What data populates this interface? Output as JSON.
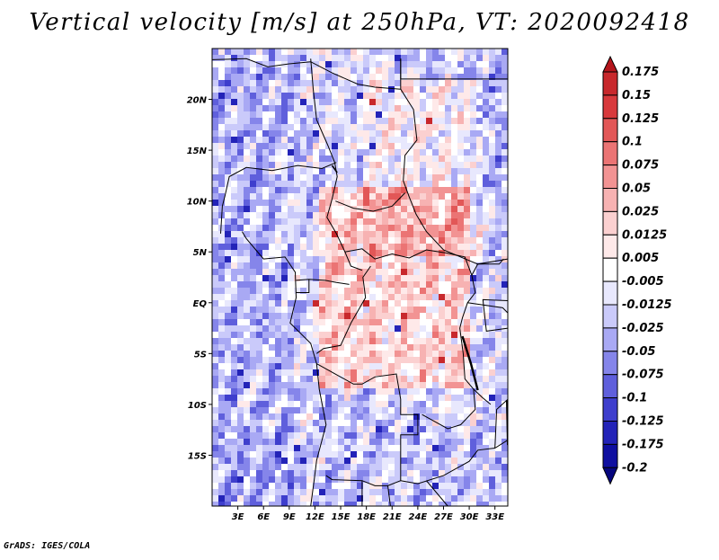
{
  "title": "Vertical velocity [m/s] at 250hPa, VT: 2020092418",
  "footer": "GrADS: IGES/COLA",
  "chart_data": {
    "type": "heatmap",
    "variable": "Vertical velocity",
    "units": "m/s",
    "level": "250hPa",
    "valid_time": "2020092418",
    "lon_range": [
      0,
      34.5
    ],
    "lat_range": [
      -20,
      25
    ],
    "lon_ticks": [
      {
        "value": 3,
        "label": "3E"
      },
      {
        "value": 6,
        "label": "6E"
      },
      {
        "value": 9,
        "label": "9E"
      },
      {
        "value": 12,
        "label": "12E"
      },
      {
        "value": 15,
        "label": "15E"
      },
      {
        "value": 18,
        "label": "18E"
      },
      {
        "value": 21,
        "label": "21E"
      },
      {
        "value": 24,
        "label": "24E"
      },
      {
        "value": 27,
        "label": "27E"
      },
      {
        "value": 30,
        "label": "30E"
      },
      {
        "value": 33,
        "label": "33E"
      }
    ],
    "lat_ticks": [
      {
        "value": 20,
        "label": "20N"
      },
      {
        "value": 15,
        "label": "15N"
      },
      {
        "value": 10,
        "label": "10N"
      },
      {
        "value": 5,
        "label": "5N"
      },
      {
        "value": 0,
        "label": "EQ"
      },
      {
        "value": -5,
        "label": "5S"
      },
      {
        "value": -10,
        "label": "10S"
      },
      {
        "value": -15,
        "label": "15S"
      }
    ],
    "colorbar": {
      "levels": [
        "0.175",
        "0.15",
        "0.125",
        "0.1",
        "0.075",
        "0.05",
        "0.025",
        "0.0125",
        "0.005",
        "-0.005",
        "-0.0125",
        "-0.025",
        "-0.05",
        "-0.075",
        "-0.1",
        "-0.125",
        "-0.175",
        "-0.2"
      ],
      "colors": [
        "#b4151c",
        "#c8282c",
        "#d8393c",
        "#e25757",
        "#eb7474",
        "#f29393",
        "#f7b2b2",
        "#fbd0d0",
        "#fee9e9",
        "#ffffff",
        "#e8e8fd",
        "#cacafa",
        "#a9a9f4",
        "#8585ea",
        "#5f5fdc",
        "#3e3ecd",
        "#2323b8",
        "#0f0fa0",
        "#06067e"
      ]
    }
  }
}
